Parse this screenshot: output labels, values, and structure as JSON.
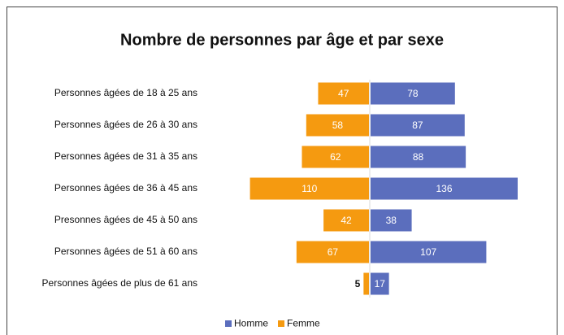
{
  "chart_data": {
    "type": "diverging_bar",
    "title": "Nombre de personnes par âge et par sexe",
    "categories": [
      "Personnes âgées de 18 à 25 ans",
      "Personnes âgées de 26 à 30 ans",
      "Personnes âgées de 31 à 35 ans",
      "Personnes âgées de 36 à 45 ans",
      "Presonnes âgées de 45 à 50 ans",
      "Personnes âgées de 51 à 60 ans",
      "Personnes âgées de plus de 61 ans"
    ],
    "series": [
      {
        "name": "Homme",
        "color": "#5b6ebd",
        "values": [
          78,
          87,
          88,
          136,
          38,
          107,
          17
        ]
      },
      {
        "name": "Femme",
        "color": "#f59a10",
        "values": [
          47,
          58,
          62,
          110,
          42,
          67,
          5
        ]
      }
    ],
    "legend": "bottom"
  }
}
